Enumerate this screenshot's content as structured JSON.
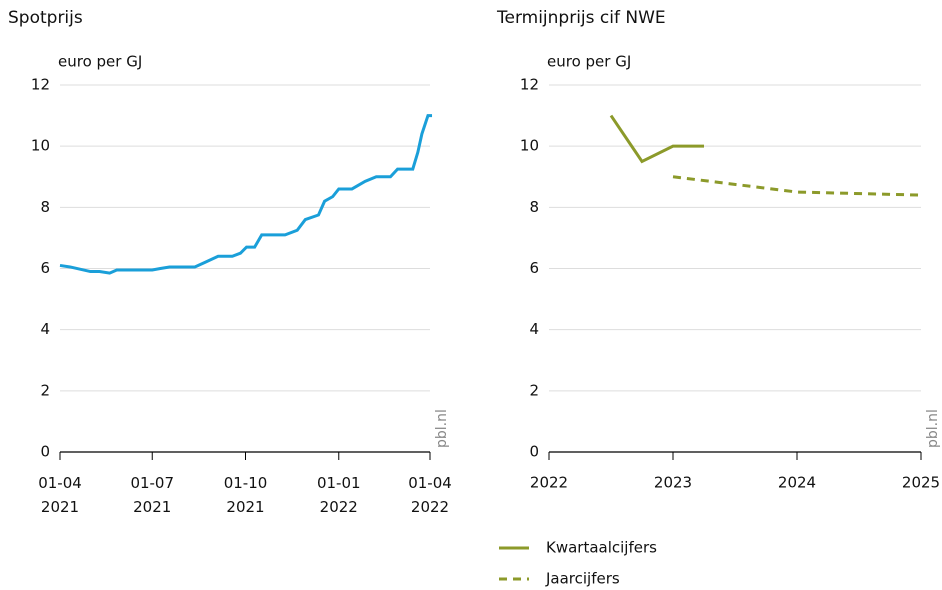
{
  "chart_data": [
    {
      "type": "line",
      "title": "Spotprijs",
      "y_label": "euro per GJ",
      "annotation": "pbl.nl",
      "x": [
        "2021-04-01",
        "2021-04-11",
        "2021-05-01",
        "2021-05-10",
        "2021-05-20",
        "2021-05-27",
        "2021-07-01",
        "2021-07-09",
        "2021-07-18",
        "2021-08-12",
        "2021-08-22",
        "2021-09-04",
        "2021-09-18",
        "2021-09-26",
        "2021-10-02",
        "2021-10-10",
        "2021-10-17",
        "2021-11-09",
        "2021-11-21",
        "2021-11-29",
        "2021-12-12",
        "2021-12-18",
        "2021-12-26",
        "2022-01-01",
        "2022-01-14",
        "2022-01-27",
        "2022-02-07",
        "2022-02-21",
        "2022-02-28",
        "2022-03-15",
        "2022-03-20",
        "2022-03-24",
        "2022-03-30",
        "2022-04-03"
      ],
      "series": [
        {
          "color": "#1a9fd9",
          "values": [
            6.1,
            6.05,
            5.9,
            5.9,
            5.85,
            5.95,
            5.95,
            6.0,
            6.05,
            6.05,
            6.2,
            6.4,
            6.4,
            6.5,
            6.7,
            6.7,
            7.1,
            7.1,
            7.25,
            7.6,
            7.75,
            8.2,
            8.35,
            8.6,
            8.6,
            8.85,
            9.0,
            9.0,
            9.25,
            9.25,
            9.8,
            10.4,
            11.0,
            11.0
          ]
        }
      ],
      "xlim": [
        "2021-04-01",
        "2022-04-01"
      ],
      "xticks": [
        {
          "value": "2021-04-01",
          "label": "01-04 2021"
        },
        {
          "value": "2021-07-01",
          "label": "01-07 2021"
        },
        {
          "value": "2021-10-01",
          "label": "01-10 2021"
        },
        {
          "value": "2022-01-01",
          "label": "01-01 2022"
        },
        {
          "value": "2022-04-01",
          "label": "01-04 2022"
        }
      ],
      "ylim": [
        0,
        12
      ],
      "yticks": [
        0,
        2,
        4,
        6,
        8,
        10,
        12
      ],
      "grid": true
    },
    {
      "type": "line",
      "title": "Termijnprijs cif NWE",
      "y_label": "euro per GJ",
      "annotation": "pbl.nl",
      "series": [
        {
          "name": "Kwartaalcijfers",
          "color": "#8c9a2a",
          "dash": false,
          "x": [
            2022.5,
            2022.75,
            2023,
            2023.25
          ],
          "values": [
            11,
            9.5,
            10,
            10
          ]
        },
        {
          "name": "Jaarcijfers",
          "color": "#8c9a2a",
          "dash": true,
          "x": [
            2023,
            2024,
            2025
          ],
          "values": [
            9,
            8.5,
            8.4
          ]
        }
      ],
      "xlim": [
        2022,
        2025
      ],
      "xticks": [
        2022,
        2023,
        2024,
        2025
      ],
      "ylim": [
        0,
        12
      ],
      "yticks": [
        0,
        2,
        4,
        6,
        8,
        10,
        12
      ],
      "grid": true,
      "legend": "bottom"
    }
  ]
}
